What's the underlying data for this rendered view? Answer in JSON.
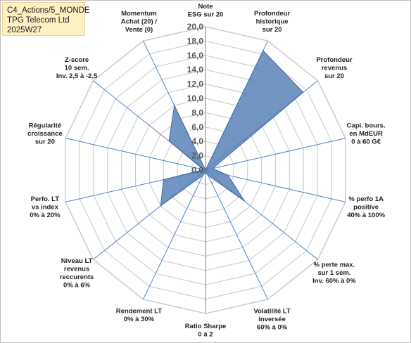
{
  "info": {
    "line1": "C4_Actions/5_MONDE",
    "line2": "TPG Telecom Ltd",
    "line3": "2025W27"
  },
  "colors": {
    "fill": "#5b82b6",
    "stroke": "#3f6aa8",
    "grid": "#c8c8c8",
    "spoke": "#4f86c6",
    "info_bg": "#fdf0c2"
  },
  "chart_data": {
    "type": "radar",
    "rmin": 0,
    "rmax": 20,
    "step": 2,
    "tick_labels": [
      "0,0",
      "2,0",
      "4,0",
      "6,0",
      "8,0",
      "10,0",
      "12,0",
      "14,0",
      "16,0",
      "18,0",
      "20,0"
    ],
    "categories": [
      "Note\nESG sur 20",
      "Profondeur\nhistorique\nsur 20",
      "Profondeur\nrevenus\nsur 20",
      "Capi. bours.\nen MdEUR\n0 à 60 G€",
      "% perfo 1A\npositive\n40% à 100%",
      "% perte max.\nsur 1 sem.\nInv. 60% à 0%",
      "Volatilité LT\ninversée\n60% à 0%",
      "Ratio Sharpe\n0 à 2",
      "Rendement LT\n0% à 30%",
      "Niveau LT\nrevenus\nreccurents\n0% à 6%",
      "Perfo. LT\nvs index\n0% à 20%",
      "Régularité\ncroissance\nsur 20",
      "Z-score\n10 sem.\nInv. 2,5 à -2,5",
      "Momentum\nAchat (20) /\nVente (0)"
    ],
    "values": [
      0,
      18.5,
      17.4,
      1.0,
      3.2,
      7.0,
      0.8,
      0.3,
      0.8,
      8.0,
      6.0,
      0.3,
      6.5,
      10.0
    ]
  }
}
